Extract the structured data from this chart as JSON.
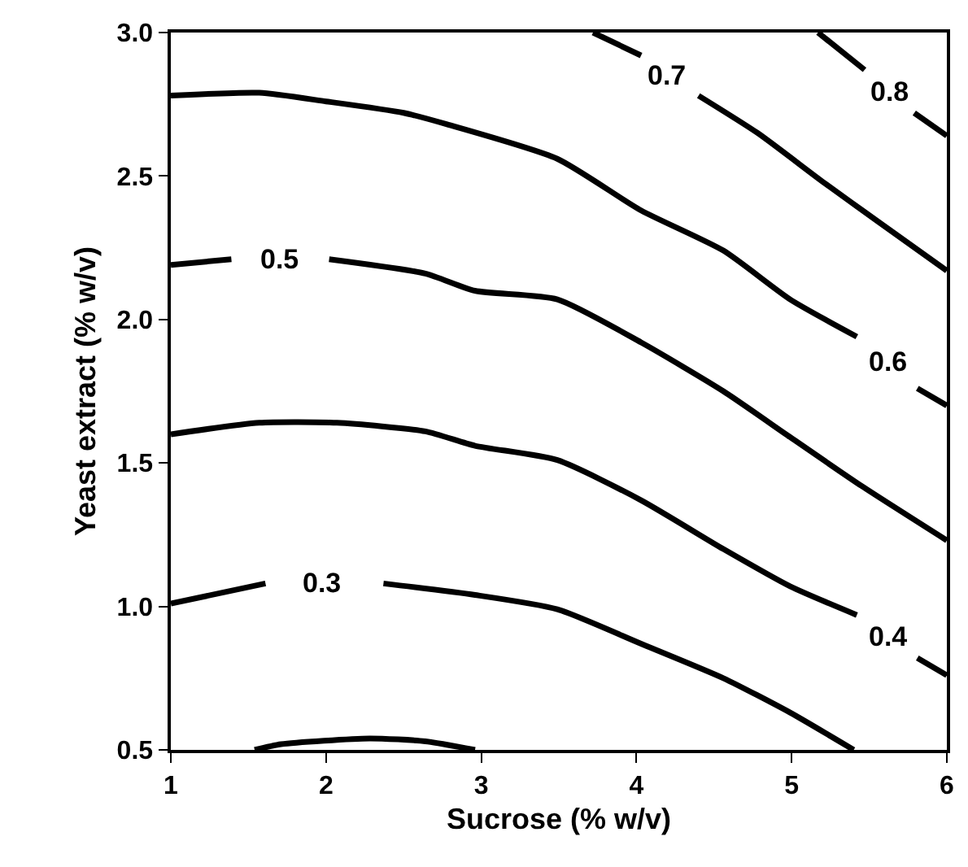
{
  "chart_data": {
    "type": "line",
    "xlabel": "Sucrose (% w/v)",
    "ylabel": "Yeast extract (% w/v)",
    "xlim": [
      1,
      6
    ],
    "xticks": [
      1,
      2,
      3,
      4,
      5,
      6
    ],
    "ylim": [
      0.5,
      3.0
    ],
    "yticks": [
      {
        "value": 0.5,
        "label": "0.5"
      },
      {
        "value": 1.0,
        "label": "1.0"
      },
      {
        "value": 1.5,
        "label": "1.5"
      },
      {
        "value": 2.0,
        "label": "2.0"
      },
      {
        "value": 2.5,
        "label": "2.5"
      },
      {
        "value": 3.0,
        "label": "3.0"
      }
    ],
    "legend": false,
    "marker": "none",
    "line_style": "solid",
    "series": [
      {
        "color": "#000000",
        "x": [
          1.54,
          1.71,
          2.28,
          2.64,
          2.96
        ],
        "values": [
          0.5,
          0.52,
          0.54,
          0.53,
          0.5
        ]
      },
      {
        "name": "0.3",
        "color": "#000000",
        "x": [
          1,
          1.61,
          1.97,
          2.37,
          2.96,
          3.49,
          4.03,
          4.56,
          4.99,
          5.4
        ],
        "values": [
          1.01,
          1.08,
          null,
          1.08,
          1.04,
          0.99,
          0.87,
          0.75,
          0.63,
          0.5
        ]
      },
      {
        "name": "0.4",
        "color": "#000000",
        "x": [
          1,
          1.57,
          2.07,
          2.64,
          2.96,
          3.49,
          4.03,
          4.56,
          4.99,
          5.42,
          5.62,
          5.81,
          6
        ],
        "values": [
          1.6,
          1.64,
          1.64,
          1.61,
          1.56,
          1.51,
          1.37,
          1.2,
          1.07,
          0.97,
          null,
          0.82,
          0.76
        ]
      },
      {
        "name": "0.5",
        "color": "#000000",
        "x": [
          1,
          1.39,
          1.7,
          2.02,
          2.64,
          2.96,
          3.49,
          4.03,
          4.56,
          4.99,
          5.45,
          6
        ],
        "values": [
          2.19,
          2.21,
          null,
          2.21,
          2.16,
          2.1,
          2.07,
          1.92,
          1.75,
          1.59,
          1.42,
          1.23
        ]
      },
      {
        "name": "0.6",
        "color": "#000000",
        "x": [
          1,
          1.57,
          2,
          2.5,
          2.78,
          3.49,
          4.03,
          4.56,
          4.99,
          5.42,
          5.62,
          5.81,
          6
        ],
        "values": [
          2.78,
          2.79,
          2.76,
          2.72,
          2.68,
          2.56,
          2.38,
          2.24,
          2.07,
          1.94,
          null,
          1.76,
          1.7
        ]
      },
      {
        "name": "0.7",
        "color": "#000000",
        "x": [
          3.72,
          4.03,
          4.2,
          4.4,
          4.78,
          5.2,
          5.56,
          6
        ],
        "values": [
          3.0,
          2.92,
          null,
          2.78,
          2.65,
          2.48,
          2.34,
          2.17
        ]
      },
      {
        "name": "0.8",
        "color": "#000000",
        "x": [
          5.17,
          5.47,
          5.63,
          5.79,
          6
        ],
        "values": [
          3.0,
          2.87,
          null,
          2.72,
          2.64
        ]
      }
    ]
  }
}
